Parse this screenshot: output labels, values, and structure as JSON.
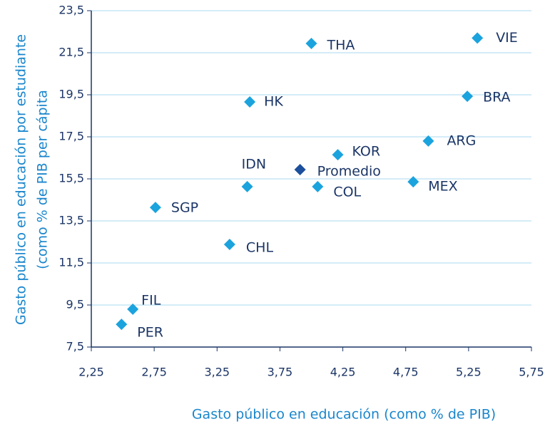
{
  "chart_data": {
    "type": "scatter",
    "x_label": "Gasto público en educación (como % de PIB)",
    "y_label": [
      "Gasto público en educación por estudiante",
      "(como % de PIB  per cápita"
    ],
    "point_labels": [
      "PER",
      "FIL",
      "SGP",
      "CHL",
      "IDN",
      "HK",
      "THA",
      "Promedio",
      "KOR",
      "COL",
      "MEX",
      "ARG",
      "BRA",
      "VIE"
    ],
    "x": [
      2.49,
      2.58,
      2.76,
      3.35,
      3.49,
      3.51,
      4.0,
      3.91,
      4.21,
      4.05,
      4.81,
      4.93,
      5.24,
      5.32
    ],
    "values": [
      8.58,
      9.3,
      14.14,
      12.38,
      15.13,
      19.16,
      21.94,
      15.94,
      16.65,
      15.13,
      15.36,
      17.3,
      19.43,
      22.2
    ],
    "point_colors": [
      "#1ba3de",
      "#1ba3de",
      "#1ba3de",
      "#1ba3de",
      "#1ba3de",
      "#1ba3de",
      "#1ba3de",
      "#1c4f9c",
      "#1ba3de",
      "#1ba3de",
      "#1ba3de",
      "#1ba3de",
      "#1ba3de",
      "#1ba3de"
    ],
    "xlim": [
      2.25,
      5.75
    ],
    "xticks": [
      {
        "value": 2.25,
        "label": "2,25"
      },
      {
        "value": 2.75,
        "label": "2,75"
      },
      {
        "value": 3.25,
        "label": "3,25"
      },
      {
        "value": 3.75,
        "label": "3,75"
      },
      {
        "value": 4.25,
        "label": "4,25"
      },
      {
        "value": 4.75,
        "label": "4,75"
      },
      {
        "value": 5.25,
        "label": "5,25"
      },
      {
        "value": 5.75,
        "label": "5,75"
      }
    ],
    "ylim": [
      7.5,
      23.5
    ],
    "yticks": [
      {
        "value": 7.5,
        "label": "7,5"
      },
      {
        "value": 9.5,
        "label": "9,5"
      },
      {
        "value": 11.5,
        "label": "11,5"
      },
      {
        "value": 13.5,
        "label": "13,5"
      },
      {
        "value": 15.5,
        "label": "15,5"
      },
      {
        "value": 17.5,
        "label": "17,5"
      },
      {
        "value": 19.5,
        "label": "19,5"
      },
      {
        "value": 21.5,
        "label": "21,5"
      },
      {
        "value": 23.5,
        "label": "23,5"
      }
    ],
    "grid": true
  }
}
